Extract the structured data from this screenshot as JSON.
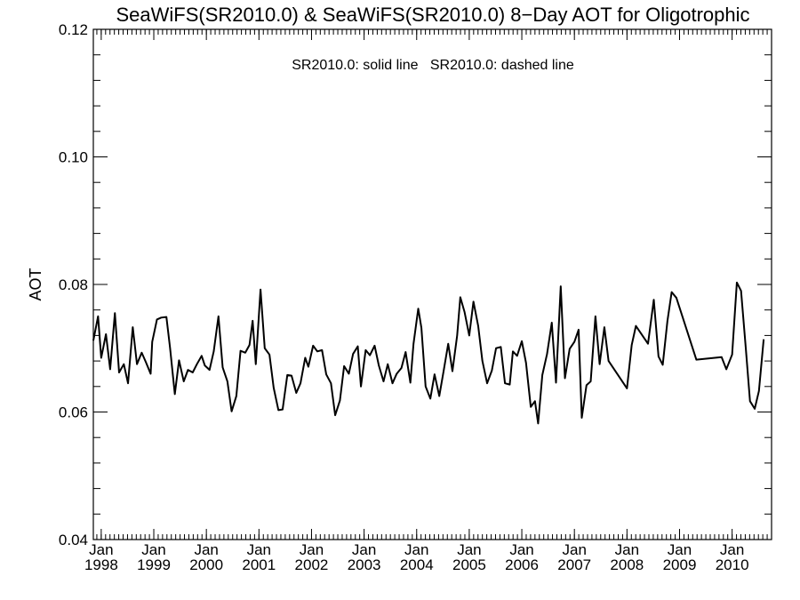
{
  "chart_data": {
    "type": "line",
    "title": "SeaWiFS(SR2010.0) & SeaWiFS(SR2010.0) 8−Day AOT for Oligotrophic",
    "legend_text": "SR2010.0: solid line   SR2010.0: dashed line",
    "legend_placement": "top-center",
    "ylabel": "AOT",
    "xlabel": "",
    "grid": false,
    "ylim": [
      0.04,
      0.12
    ],
    "xlim": [
      1997.85,
      2010.75
    ],
    "y_ticks": [
      {
        "value": 0.04,
        "label": "0.04"
      },
      {
        "value": 0.06,
        "label": "0.06"
      },
      {
        "value": 0.08,
        "label": "0.08"
      },
      {
        "value": 0.1,
        "label": "0.10"
      },
      {
        "value": 0.12,
        "label": "0.12"
      }
    ],
    "x_ticks": [
      {
        "value": 1998.0,
        "month": "Jan",
        "year": "1998"
      },
      {
        "value": 1999.0,
        "month": "Jan",
        "year": "1999"
      },
      {
        "value": 2000.0,
        "month": "Jan",
        "year": "2000"
      },
      {
        "value": 2001.0,
        "month": "Jan",
        "year": "2001"
      },
      {
        "value": 2002.0,
        "month": "Jan",
        "year": "2002"
      },
      {
        "value": 2003.0,
        "month": "Jan",
        "year": "2003"
      },
      {
        "value": 2004.0,
        "month": "Jan",
        "year": "2004"
      },
      {
        "value": 2005.0,
        "month": "Jan",
        "year": "2005"
      },
      {
        "value": 2006.0,
        "month": "Jan",
        "year": "2006"
      },
      {
        "value": 2007.0,
        "month": "Jan",
        "year": "2007"
      },
      {
        "value": 2008.0,
        "month": "Jan",
        "year": "2008"
      },
      {
        "value": 2009.0,
        "month": "Jan",
        "year": "2009"
      },
      {
        "value": 2010.0,
        "month": "Jan",
        "year": "2010"
      }
    ],
    "series": [
      {
        "color": "#000000",
        "style": "solid",
        "points": [
          [
            1997.85,
            0.0712
          ],
          [
            1997.94,
            0.075
          ],
          [
            1998.0,
            0.0685
          ],
          [
            1998.09,
            0.0722
          ],
          [
            1998.17,
            0.0667
          ],
          [
            1998.26,
            0.0755
          ],
          [
            1998.34,
            0.0662
          ],
          [
            1998.43,
            0.0675
          ],
          [
            1998.51,
            0.0645
          ],
          [
            1998.6,
            0.0733
          ],
          [
            1998.68,
            0.0675
          ],
          [
            1998.77,
            0.0693
          ],
          [
            1998.85,
            0.0678
          ],
          [
            1998.94,
            0.066
          ],
          [
            1998.97,
            0.071
          ],
          [
            1999.06,
            0.0745
          ],
          [
            1999.14,
            0.0748
          ],
          [
            1999.24,
            0.0749
          ],
          [
            1999.31,
            0.07
          ],
          [
            1999.4,
            0.0628
          ],
          [
            1999.48,
            0.0681
          ],
          [
            1999.57,
            0.0648
          ],
          [
            1999.65,
            0.0666
          ],
          [
            1999.74,
            0.0662
          ],
          [
            1999.82,
            0.0675
          ],
          [
            1999.91,
            0.0688
          ],
          [
            1999.97,
            0.0673
          ],
          [
            2000.06,
            0.0666
          ],
          [
            2000.14,
            0.0695
          ],
          [
            2000.23,
            0.075
          ],
          [
            2000.31,
            0.067
          ],
          [
            2000.4,
            0.0648
          ],
          [
            2000.48,
            0.0601
          ],
          [
            2000.57,
            0.0625
          ],
          [
            2000.65,
            0.0696
          ],
          [
            2000.74,
            0.0693
          ],
          [
            2000.82,
            0.0705
          ],
          [
            2000.88,
            0.0743
          ],
          [
            2000.94,
            0.0675
          ],
          [
            2001.03,
            0.0792
          ],
          [
            2001.11,
            0.07
          ],
          [
            2001.2,
            0.069
          ],
          [
            2001.28,
            0.0638
          ],
          [
            2001.37,
            0.0603
          ],
          [
            2001.45,
            0.0604
          ],
          [
            2001.54,
            0.0658
          ],
          [
            2001.62,
            0.0657
          ],
          [
            2001.71,
            0.063
          ],
          [
            2001.79,
            0.0645
          ],
          [
            2001.88,
            0.0685
          ],
          [
            2001.94,
            0.0671
          ],
          [
            2002.03,
            0.0704
          ],
          [
            2002.11,
            0.0695
          ],
          [
            2002.2,
            0.0697
          ],
          [
            2002.28,
            0.0659
          ],
          [
            2002.37,
            0.0645
          ],
          [
            2002.45,
            0.0595
          ],
          [
            2002.54,
            0.0618
          ],
          [
            2002.62,
            0.0672
          ],
          [
            2002.71,
            0.066
          ],
          [
            2002.79,
            0.0691
          ],
          [
            2002.88,
            0.0703
          ],
          [
            2002.94,
            0.064
          ],
          [
            2003.03,
            0.0697
          ],
          [
            2003.11,
            0.0689
          ],
          [
            2003.2,
            0.0704
          ],
          [
            2003.28,
            0.0673
          ],
          [
            2003.37,
            0.0648
          ],
          [
            2003.45,
            0.0675
          ],
          [
            2003.54,
            0.0645
          ],
          [
            2003.62,
            0.066
          ],
          [
            2003.71,
            0.0669
          ],
          [
            2003.79,
            0.0694
          ],
          [
            2003.88,
            0.0646
          ],
          [
            2003.94,
            0.0707
          ],
          [
            2004.03,
            0.0762
          ],
          [
            2004.09,
            0.0732
          ],
          [
            2004.17,
            0.064
          ],
          [
            2004.26,
            0.0621
          ],
          [
            2004.34,
            0.0659
          ],
          [
            2004.43,
            0.0625
          ],
          [
            2004.51,
            0.0663
          ],
          [
            2004.6,
            0.0707
          ],
          [
            2004.68,
            0.0664
          ],
          [
            2004.77,
            0.072
          ],
          [
            2004.83,
            0.078
          ],
          [
            2004.91,
            0.0757
          ],
          [
            2005.0,
            0.072
          ],
          [
            2005.08,
            0.0773
          ],
          [
            2005.17,
            0.0735
          ],
          [
            2005.25,
            0.068
          ],
          [
            2005.34,
            0.0645
          ],
          [
            2005.43,
            0.0665
          ],
          [
            2005.51,
            0.07
          ],
          [
            2005.6,
            0.0702
          ],
          [
            2005.68,
            0.0645
          ],
          [
            2005.77,
            0.0643
          ],
          [
            2005.83,
            0.0695
          ],
          [
            2005.91,
            0.0688
          ],
          [
            2006.0,
            0.0711
          ],
          [
            2006.08,
            0.0677
          ],
          [
            2006.17,
            0.0608
          ],
          [
            2006.25,
            0.0617
          ],
          [
            2006.31,
            0.0582
          ],
          [
            2006.39,
            0.0658
          ],
          [
            2006.48,
            0.0691
          ],
          [
            2006.57,
            0.074
          ],
          [
            2006.65,
            0.0646
          ],
          [
            2006.74,
            0.0797
          ],
          [
            2006.82,
            0.0653
          ],
          [
            2006.91,
            0.0699
          ],
          [
            2007.0,
            0.071
          ],
          [
            2007.08,
            0.0729
          ],
          [
            2007.14,
            0.0591
          ],
          [
            2007.23,
            0.0642
          ],
          [
            2007.31,
            0.0648
          ],
          [
            2007.4,
            0.075
          ],
          [
            2007.48,
            0.0675
          ],
          [
            2007.57,
            0.0733
          ],
          [
            2007.65,
            0.068
          ],
          [
            2008.0,
            0.0637
          ],
          [
            2008.09,
            0.0705
          ],
          [
            2008.17,
            0.0735
          ],
          [
            2008.4,
            0.0707
          ],
          [
            2008.51,
            0.0776
          ],
          [
            2008.6,
            0.0687
          ],
          [
            2008.68,
            0.0674
          ],
          [
            2008.77,
            0.0743
          ],
          [
            2008.85,
            0.0788
          ],
          [
            2008.94,
            0.0779
          ],
          [
            2009.32,
            0.0682
          ],
          [
            2009.8,
            0.0686
          ],
          [
            2009.89,
            0.0667
          ],
          [
            2010.0,
            0.069
          ],
          [
            2010.09,
            0.0803
          ],
          [
            2010.17,
            0.079
          ],
          [
            2010.26,
            0.07
          ],
          [
            2010.34,
            0.0617
          ],
          [
            2010.43,
            0.0605
          ],
          [
            2010.51,
            0.0633
          ],
          [
            2010.6,
            0.0714
          ]
        ]
      }
    ]
  }
}
